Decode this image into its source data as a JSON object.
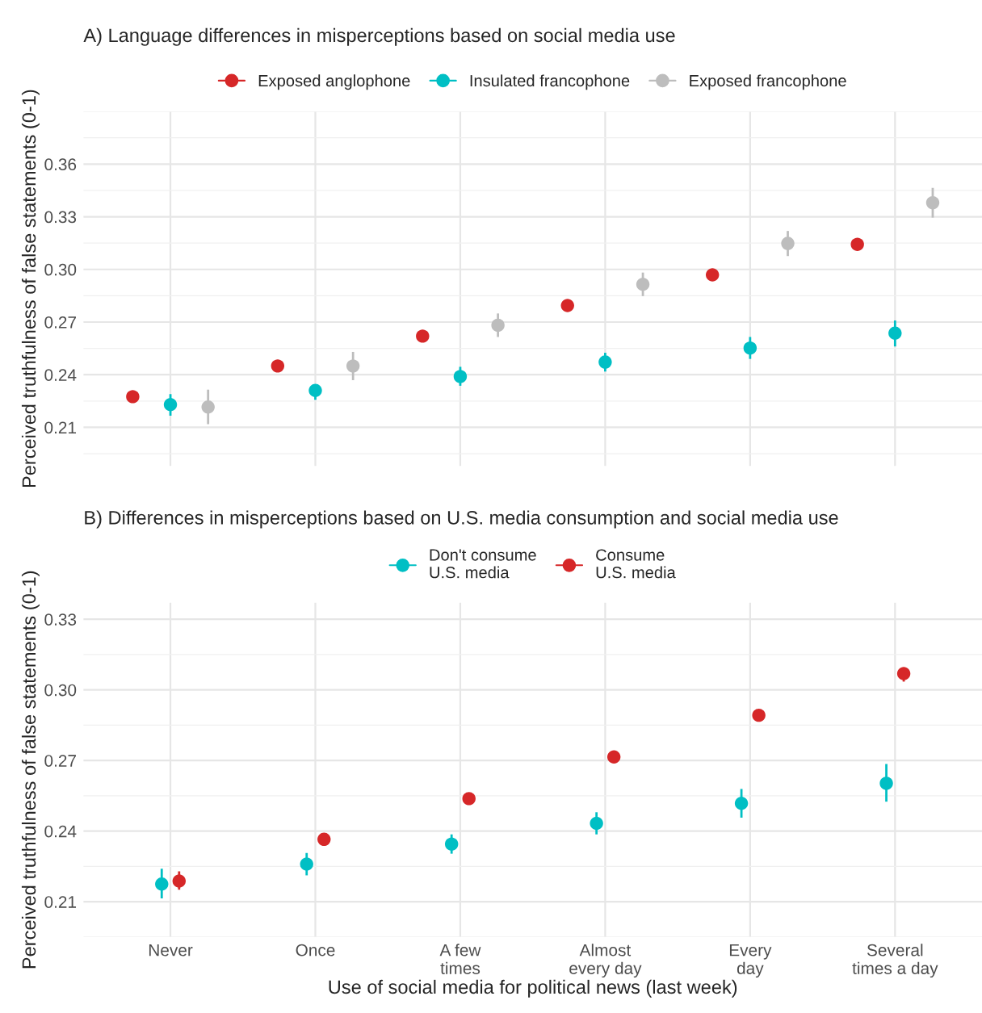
{
  "chart_data": [
    {
      "type": "scatter",
      "title": "A) Language differences in misperceptions based on social media use",
      "ylabel": "Perceived truthfulness of false statements (0-1)",
      "categories": [
        null,
        null,
        null,
        null,
        null,
        null
      ],
      "tick_labels": "y",
      "ylim": [
        0.188,
        0.39
      ],
      "yticks": [
        0.21,
        0.24,
        0.27,
        {
          "value": 0.3,
          "label": "0.30"
        },
        0.33,
        0.36
      ],
      "grid": true,
      "legend": "top",
      "marker": "circle",
      "series": [
        {
          "name": "Exposed anglophone",
          "color": "#d62728",
          "values": [
            0.2275,
            0.245,
            0.262,
            0.2794,
            0.2969,
            0.3143
          ]
        },
        {
          "name": "Insulated francophone",
          "color": "#00bfc4",
          "values": [
            0.223,
            0.231,
            0.239,
            0.2472,
            0.2552,
            0.2637
          ],
          "errors": [
            [
              0.2167,
              0.229
            ],
            [
              0.2257,
              0.2346
            ],
            [
              0.2337,
              0.2445
            ],
            [
              0.2418,
              0.2525
            ],
            [
              0.249,
              0.2615
            ],
            [
              0.2561,
              0.2709
            ]
          ]
        },
        {
          "name": "Exposed francophone",
          "color": "#bdbdbd",
          "values": [
            0.2216,
            0.245,
            0.2682,
            0.2915,
            0.3148,
            0.338
          ],
          "errors": [
            [
              0.2118,
              0.2315
            ],
            [
              0.2369,
              0.253
            ],
            [
              0.2615,
              0.2749
            ],
            [
              0.2848,
              0.2982
            ],
            [
              0.3076,
              0.3219
            ],
            [
              0.3295,
              0.3465
            ]
          ]
        }
      ]
    },
    {
      "type": "scatter",
      "title": "B) Differences in misperceptions based on U.S. media consumption and social media use",
      "ylabel": "Perceived truthfulness of false statements (0-1)",
      "xlabel": "Use of social media for political news (last week)",
      "categories": [
        "Never",
        "Once",
        "A few\ntimes",
        "Almost\nevery day",
        "Every\nday",
        "Several\ntimes a day"
      ],
      "ylim": [
        0.195,
        0.337
      ],
      "yticks": [
        0.21,
        0.24,
        0.27,
        {
          "value": 0.3,
          "label": "0.30"
        },
        0.33
      ],
      "grid": true,
      "legend": "top",
      "marker": "circle",
      "series": [
        {
          "name": "Don't consume\nU.S. media",
          "color": "#00bfc4",
          "values": [
            0.2175,
            0.226,
            0.2345,
            0.2433,
            0.2518,
            0.2603
          ],
          "errors": [
            [
              0.2114,
              0.224
            ],
            [
              0.2212,
              0.2307
            ],
            [
              0.2304,
              0.2386
            ],
            [
              0.2386,
              0.248
            ],
            [
              0.2457,
              0.2579
            ],
            [
              0.2525,
              0.2685
            ]
          ]
        },
        {
          "name": "Consume\nU.S. media",
          "color": "#d62728",
          "values": [
            0.2188,
            0.2365,
            0.2538,
            0.2715,
            0.2892,
            0.3069
          ],
          "errors": [
            [
              0.2151,
              0.2229
            ],
            [
              0.2341,
              0.2389
            ],
            null,
            null,
            null,
            [
              0.3035,
              0.3093
            ]
          ]
        }
      ]
    }
  ]
}
